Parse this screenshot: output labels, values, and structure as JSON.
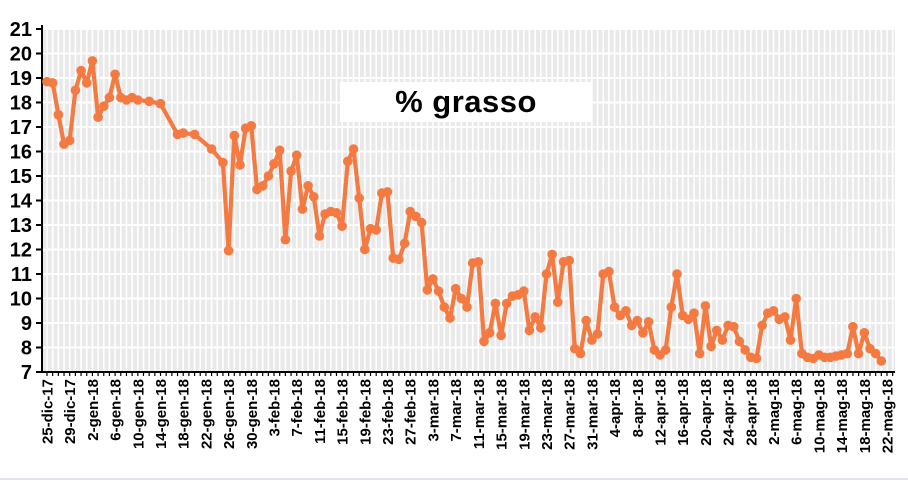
{
  "chart_data": {
    "type": "line",
    "title": "% grasso",
    "xlabel": "",
    "ylabel": "",
    "ylim": [
      7,
      21
    ],
    "y_tick_step": 1,
    "y_tick_labels": [
      "7",
      "8",
      "9",
      "10",
      "11",
      "12",
      "13",
      "14",
      "15",
      "16",
      "17",
      "18",
      "19",
      "20",
      "21"
    ],
    "x_tick_interval_days": 4,
    "x_tick_labels": [
      "25-dic-17",
      "29-dic-17",
      "2-gen-18",
      "6-gen-18",
      "10-gen-18",
      "14-gen-18",
      "18-gen-18",
      "22-gen-18",
      "26-gen-18",
      "30-gen-18",
      "3-feb-18",
      "7-feb-18",
      "11-feb-18",
      "15-feb-18",
      "19-feb-18",
      "23-feb-18",
      "27-feb-18",
      "3-mar-18",
      "7-mar-18",
      "11-mar-18",
      "15-mar-18",
      "19-mar-18",
      "23-mar-18",
      "27-mar-18",
      "31-mar-18",
      "4-apr-18",
      "8-apr-18",
      "12-apr-18",
      "16-apr-18",
      "20-apr-18",
      "24-apr-18",
      "28-apr-18",
      "2-mag-18",
      "6-mag-18",
      "10-mag-18",
      "14-mag-18",
      "18-mag-18",
      "22-mag-18"
    ],
    "start_date": "25-dic-17",
    "end_date": "22-mag-18",
    "grid": true,
    "legend": false,
    "colors": {
      "line": "#F47A42",
      "plot_background": "#E9E9E9",
      "grid": "#FFFFFF",
      "axis": "#000000",
      "label": "#000000"
    },
    "series": [
      {
        "name": "% grasso",
        "points_format": [
          "day_offset_from_25-dic-17",
          "percent_fat"
        ],
        "points": [
          [
            0,
            18.85
          ],
          [
            1,
            18.8
          ],
          [
            2,
            17.5
          ],
          [
            3,
            16.3
          ],
          [
            4,
            16.45
          ],
          [
            5,
            18.5
          ],
          [
            6,
            19.3
          ],
          [
            7,
            18.8
          ],
          [
            8,
            19.7
          ],
          [
            9,
            17.4
          ],
          [
            10,
            17.85
          ],
          [
            11,
            18.2
          ],
          [
            12,
            19.15
          ],
          [
            13,
            18.2
          ],
          [
            14,
            18.1
          ],
          [
            15,
            18.2
          ],
          [
            16,
            18.1
          ],
          [
            18,
            18.05
          ],
          [
            20,
            17.95
          ],
          [
            23,
            16.7
          ],
          [
            24,
            16.75
          ],
          [
            26,
            16.7
          ],
          [
            29,
            16.1
          ],
          [
            31,
            15.55
          ],
          [
            32,
            11.95
          ],
          [
            33,
            16.65
          ],
          [
            34,
            15.45
          ],
          [
            35,
            16.95
          ],
          [
            36,
            17.05
          ],
          [
            37,
            14.45
          ],
          [
            38,
            14.6
          ],
          [
            39,
            15.0
          ],
          [
            40,
            15.5
          ],
          [
            41,
            16.05
          ],
          [
            42,
            12.4
          ],
          [
            43,
            15.2
          ],
          [
            44,
            15.85
          ],
          [
            45,
            13.65
          ],
          [
            46,
            14.6
          ],
          [
            47,
            14.15
          ],
          [
            48,
            12.55
          ],
          [
            49,
            13.45
          ],
          [
            50,
            13.55
          ],
          [
            51,
            13.5
          ],
          [
            52,
            12.95
          ],
          [
            53,
            15.6
          ],
          [
            54,
            16.1
          ],
          [
            55,
            14.1
          ],
          [
            56,
            12.0
          ],
          [
            57,
            12.85
          ],
          [
            58,
            12.8
          ],
          [
            59,
            14.3
          ],
          [
            60,
            14.35
          ],
          [
            61,
            11.65
          ],
          [
            62,
            11.6
          ],
          [
            63,
            12.25
          ],
          [
            64,
            13.55
          ],
          [
            65,
            13.35
          ],
          [
            66,
            13.1
          ],
          [
            67,
            10.35
          ],
          [
            68,
            10.8
          ],
          [
            69,
            10.3
          ],
          [
            70,
            9.65
          ],
          [
            71,
            9.2
          ],
          [
            72,
            10.4
          ],
          [
            73,
            10.0
          ],
          [
            74,
            9.65
          ],
          [
            75,
            11.45
          ],
          [
            76,
            11.5
          ],
          [
            77,
            8.25
          ],
          [
            78,
            8.6
          ],
          [
            79,
            9.8
          ],
          [
            80,
            8.5
          ],
          [
            81,
            9.8
          ],
          [
            82,
            10.1
          ],
          [
            83,
            10.15
          ],
          [
            84,
            10.3
          ],
          [
            85,
            8.7
          ],
          [
            86,
            9.25
          ],
          [
            87,
            8.8
          ],
          [
            88,
            11.0
          ],
          [
            89,
            11.8
          ],
          [
            90,
            9.85
          ],
          [
            91,
            11.5
          ],
          [
            92,
            11.55
          ],
          [
            93,
            7.95
          ],
          [
            94,
            7.75
          ],
          [
            95,
            9.1
          ],
          [
            96,
            8.3
          ],
          [
            97,
            8.55
          ],
          [
            98,
            11.0
          ],
          [
            99,
            11.1
          ],
          [
            100,
            9.65
          ],
          [
            101,
            9.3
          ],
          [
            102,
            9.5
          ],
          [
            103,
            8.9
          ],
          [
            104,
            9.1
          ],
          [
            105,
            8.6
          ],
          [
            106,
            9.05
          ],
          [
            107,
            7.9
          ],
          [
            108,
            7.7
          ],
          [
            109,
            7.9
          ],
          [
            110,
            9.65
          ],
          [
            111,
            11.0
          ],
          [
            112,
            9.3
          ],
          [
            113,
            9.15
          ],
          [
            114,
            9.4
          ],
          [
            115,
            7.75
          ],
          [
            116,
            9.7
          ],
          [
            117,
            8.05
          ],
          [
            118,
            8.7
          ],
          [
            119,
            8.3
          ],
          [
            120,
            8.9
          ],
          [
            121,
            8.85
          ],
          [
            122,
            8.25
          ],
          [
            123,
            7.9
          ],
          [
            124,
            7.6
          ],
          [
            125,
            7.55
          ],
          [
            126,
            8.9
          ],
          [
            127,
            9.4
          ],
          [
            128,
            9.5
          ],
          [
            129,
            9.15
          ],
          [
            130,
            9.25
          ],
          [
            131,
            8.3
          ],
          [
            132,
            10.0
          ],
          [
            133,
            7.75
          ],
          [
            134,
            7.6
          ],
          [
            135,
            7.55
          ],
          [
            136,
            7.7
          ],
          [
            137,
            7.6
          ],
          [
            138,
            7.6
          ],
          [
            139,
            7.65
          ],
          [
            140,
            7.7
          ],
          [
            141,
            7.75
          ],
          [
            142,
            8.85
          ],
          [
            143,
            7.75
          ],
          [
            144,
            8.6
          ],
          [
            145,
            7.95
          ],
          [
            146,
            7.75
          ],
          [
            147,
            7.45
          ]
        ]
      }
    ]
  }
}
